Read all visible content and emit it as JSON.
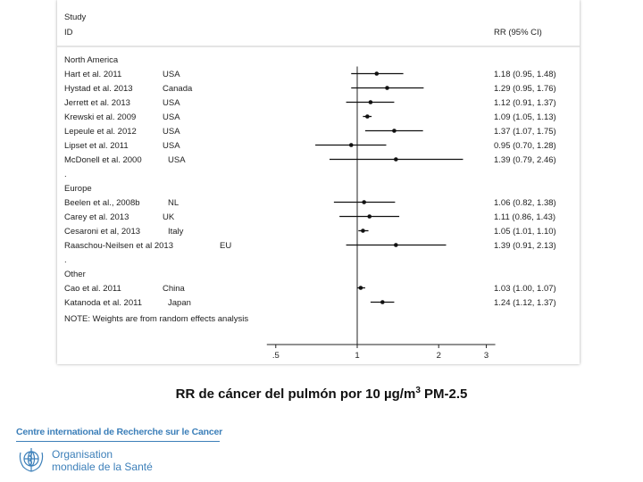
{
  "chart_data": {
    "type": "forest",
    "header": {
      "col1_line1": "Study",
      "col1_line2": "ID",
      "col2": "RR (95% CI)"
    },
    "groups": [
      {
        "name": "North America",
        "studies": [
          {
            "label": "Hart et al. 2011",
            "country": "USA",
            "rr": 1.18,
            "lo": 0.95,
            "hi": 1.48,
            "ci_text": "1.18 (0.95, 1.48)"
          },
          {
            "label": "Hystad et al. 2013",
            "country": "Canada",
            "rr": 1.29,
            "lo": 0.95,
            "hi": 1.76,
            "ci_text": "1.29 (0.95, 1.76)"
          },
          {
            "label": "Jerrett et al. 2013",
            "country": "USA",
            "rr": 1.12,
            "lo": 0.91,
            "hi": 1.37,
            "ci_text": "1.12 (0.91, 1.37)"
          },
          {
            "label": "Krewski et al. 2009",
            "country": "USA",
            "rr": 1.09,
            "lo": 1.05,
            "hi": 1.13,
            "ci_text": "1.09 (1.05, 1.13)"
          },
          {
            "label": "Lepeule et al. 2012",
            "country": "USA",
            "rr": 1.37,
            "lo": 1.07,
            "hi": 1.75,
            "ci_text": "1.37 (1.07, 1.75)"
          },
          {
            "label": "Lipset et al. 2011",
            "country": "USA",
            "rr": 0.95,
            "lo": 0.7,
            "hi": 1.28,
            "ci_text": "0.95 (0.70, 1.28)"
          },
          {
            "label": "McDonell et al. 2000",
            "country": "USA",
            "rr": 1.39,
            "lo": 0.79,
            "hi": 2.46,
            "ci_text": "1.39 (0.79, 2.46)"
          }
        ]
      },
      {
        "name": "Europe",
        "studies": [
          {
            "label": "Beelen et al., 2008b",
            "country": "NL",
            "rr": 1.06,
            "lo": 0.82,
            "hi": 1.38,
            "ci_text": "1.06 (0.82, 1.38)"
          },
          {
            "label": "Carey et al. 2013",
            "country": "UK",
            "rr": 1.11,
            "lo": 0.86,
            "hi": 1.43,
            "ci_text": "1.11 (0.86, 1.43)"
          },
          {
            "label": "Cesaroni et al, 2013",
            "country": "Italy",
            "rr": 1.05,
            "lo": 1.01,
            "hi": 1.1,
            "ci_text": "1.05 (1.01, 1.10)"
          },
          {
            "label": "Raaschou-Neilsen et al 2013",
            "country": "EU",
            "rr": 1.39,
            "lo": 0.91,
            "hi": 2.13,
            "ci_text": "1.39 (0.91, 2.13)"
          }
        ]
      },
      {
        "name": "Other",
        "studies": [
          {
            "label": "Cao et al. 2011",
            "country": "China",
            "rr": 1.03,
            "lo": 1.0,
            "hi": 1.07,
            "ci_text": "1.03 (1.00, 1.07)"
          },
          {
            "label": "Katanoda et al. 2011",
            "country": "Japan",
            "rr": 1.24,
            "lo": 1.12,
            "hi": 1.37,
            "ci_text": "1.24 (1.12, 1.37)"
          }
        ]
      }
    ],
    "separator": ".",
    "note": "NOTE: Weights are from random effects analysis",
    "x_scale": "log",
    "x_ticks": [
      0.5,
      1,
      2,
      3
    ],
    "x_tick_labels": [
      ".5",
      "1",
      "2",
      "3"
    ],
    "reference_line": 1
  },
  "caption": {
    "main": "RR de cáncer del pulmón por 10 µg/m",
    "sup": "3",
    "tail": " PM-2.5"
  },
  "footer": {
    "org_line": "Centre international de Recherche sur le Cancer",
    "who_line1": "Organisation",
    "who_line2": "mondiale de la Santé",
    "emblem_icon": "who-emblem-icon",
    "brand_color": "#3c7fb9"
  }
}
